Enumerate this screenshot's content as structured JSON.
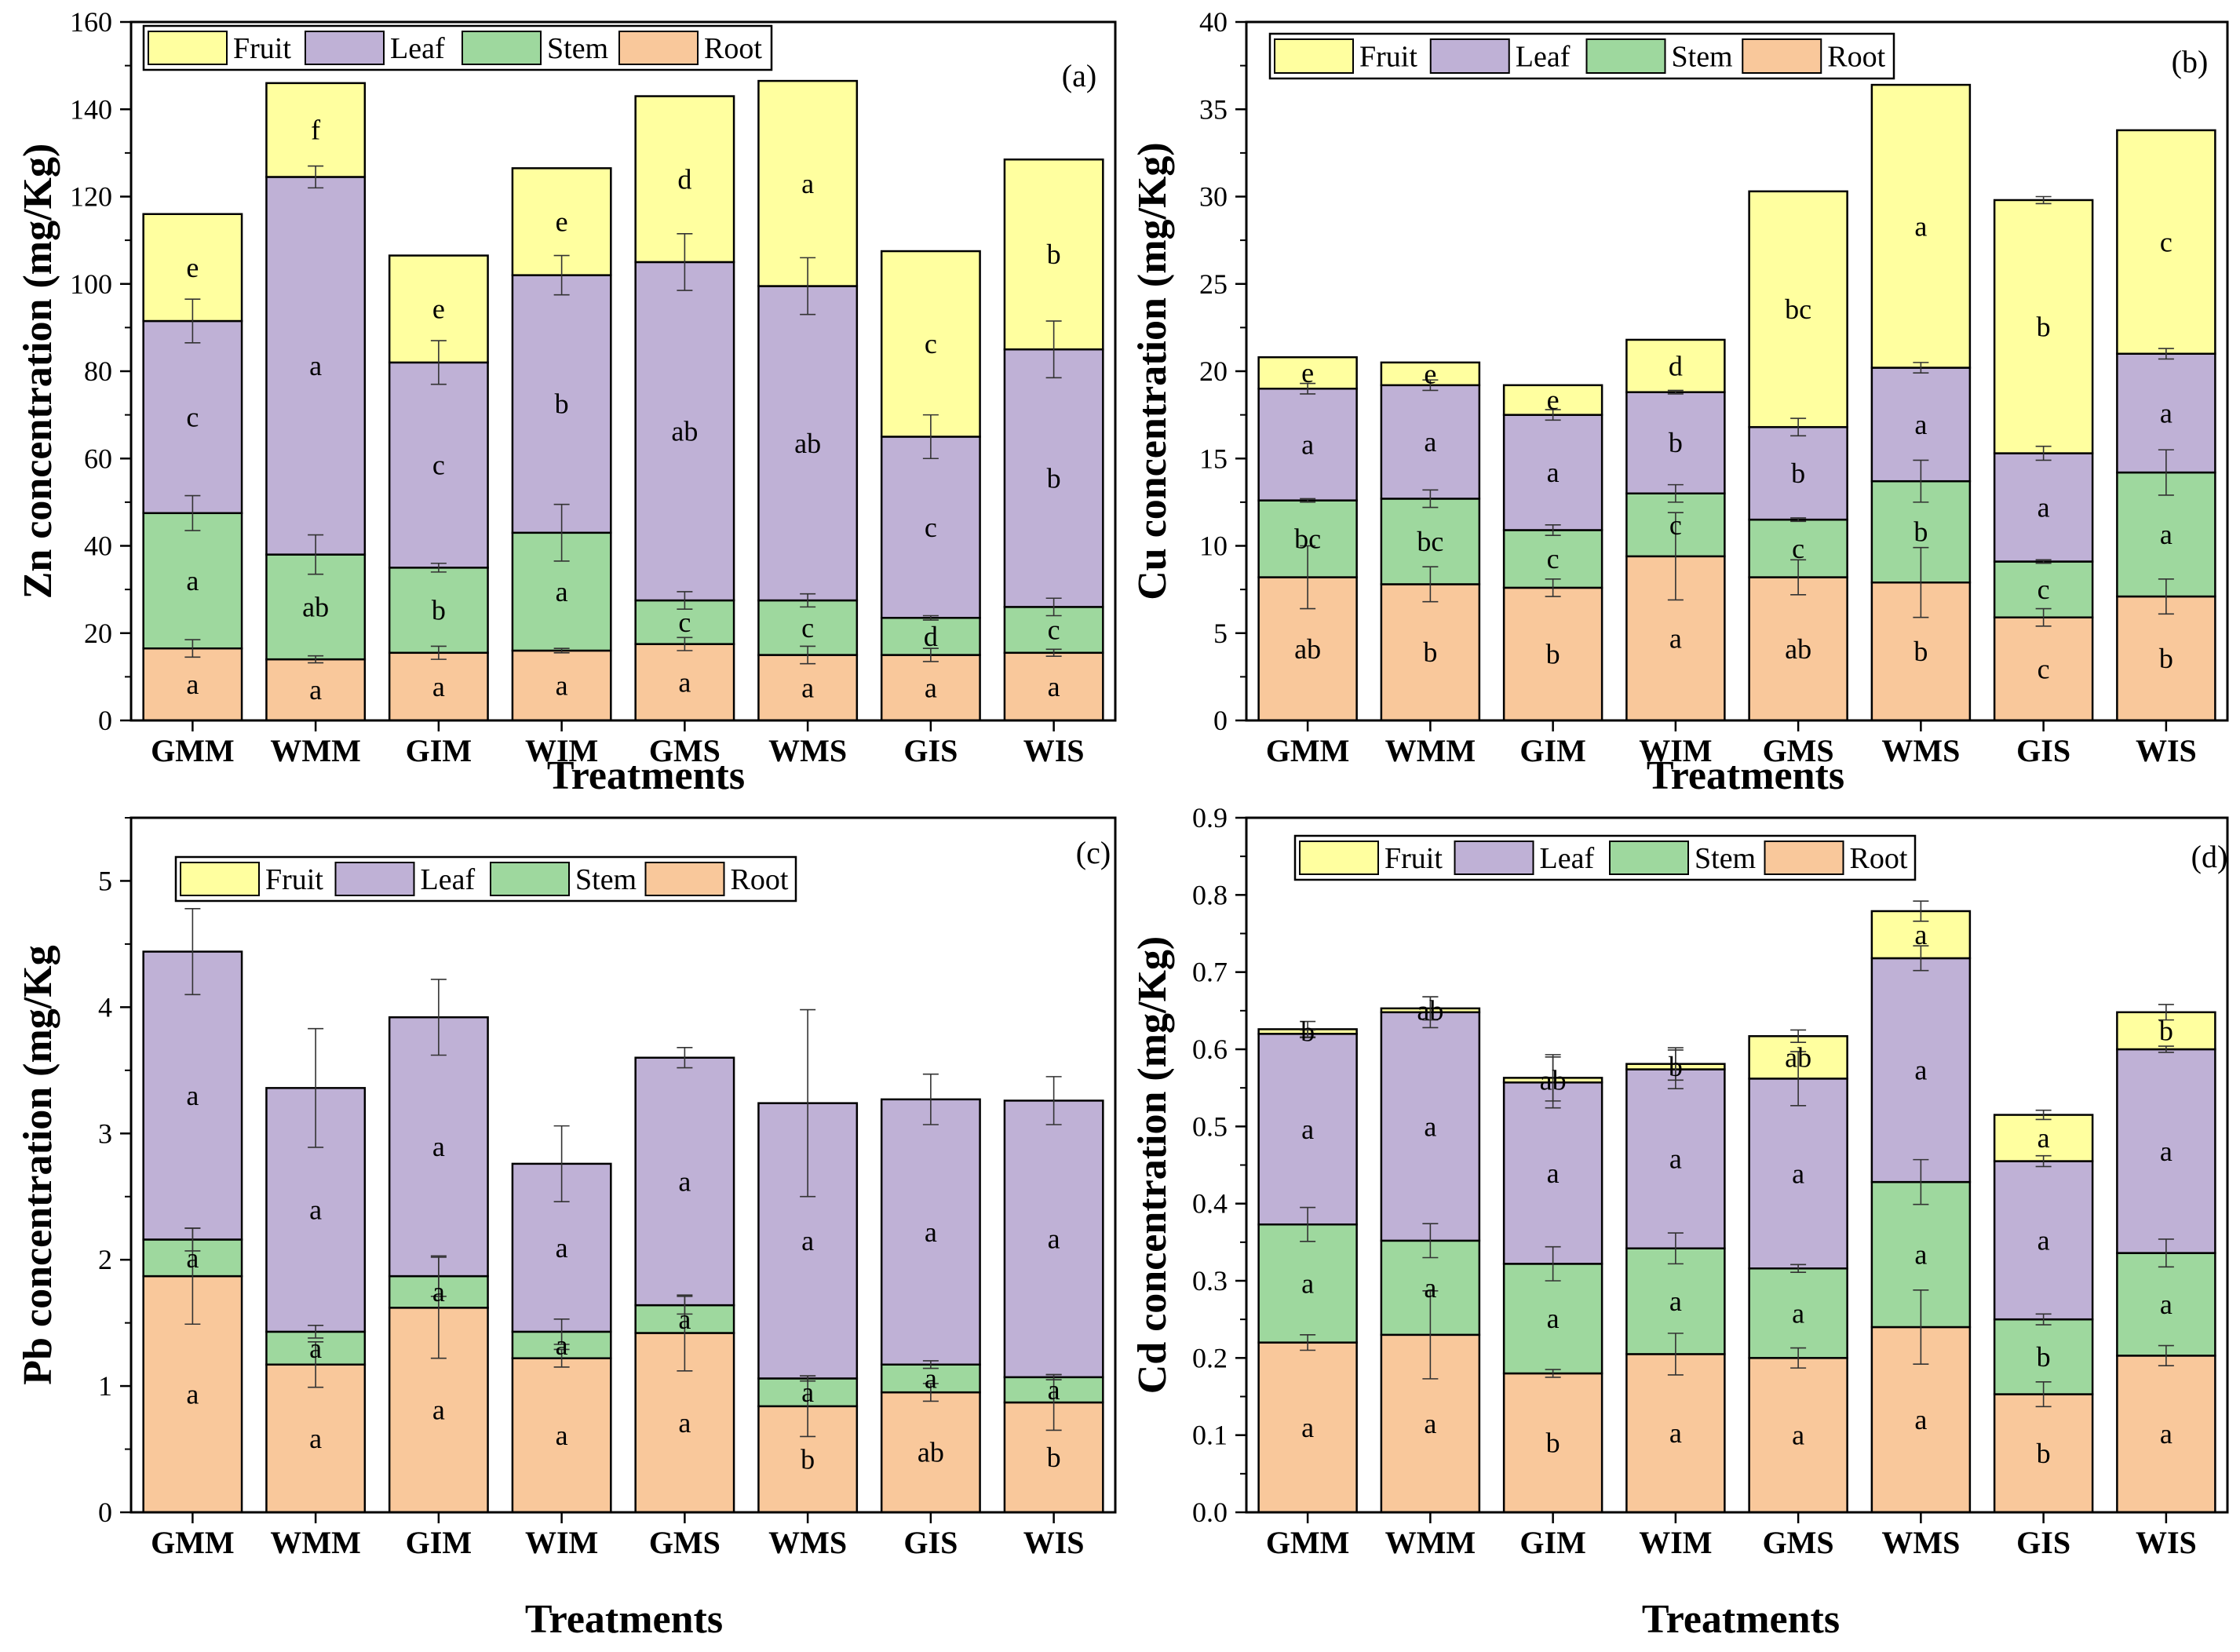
{
  "figure": {
    "series_names": [
      "Fruit",
      "Leaf",
      "Stem",
      "Root"
    ],
    "series_colors": {
      "Root": "#F9C89B",
      "Stem": "#9ED89E",
      "Leaf": "#BFB1D6",
      "Fruit": "#FFFF9F"
    },
    "xlabel": "Treatments"
  },
  "chart_data": [
    {
      "type": "bar",
      "stacked": true,
      "panel_label": "(a)",
      "ylabel": "Zn concentration (mg/Kg)",
      "xlabel": "Treatments",
      "ylim": [
        0,
        160
      ],
      "yticks": [
        0,
        20,
        40,
        60,
        80,
        100,
        120,
        140,
        160
      ],
      "ytick_labels": [
        "0",
        "20",
        "40",
        "60",
        "80",
        "100",
        "120",
        "140",
        "160"
      ],
      "legend": [
        "Fruit",
        "Leaf",
        "Stem",
        "Root"
      ],
      "categories": [
        "GMM",
        "WMM",
        "GIM",
        "WIM",
        "GMS",
        "WMS",
        "GIS",
        "WIS"
      ],
      "series": [
        {
          "name": "Root",
          "values": [
            16.5,
            14,
            15.5,
            16,
            17.5,
            15,
            15,
            15.5
          ],
          "errors": [
            2,
            0.8,
            1.5,
            0.5,
            1.5,
            2,
            1.5,
            0.8
          ],
          "letters": [
            "a",
            "a",
            "a",
            "a",
            "a",
            "a",
            "a",
            "a"
          ]
        },
        {
          "name": "Stem",
          "values": [
            31,
            24,
            19.5,
            27,
            10,
            12.5,
            8.5,
            10.5
          ],
          "errors": [
            4,
            4.5,
            1,
            6.5,
            2,
            1.5,
            0.5,
            2
          ],
          "letters": [
            "a",
            "ab",
            "b",
            "a",
            "c",
            "c",
            "d",
            "c"
          ]
        },
        {
          "name": "Leaf",
          "values": [
            44,
            86.5,
            47,
            59,
            77.5,
            72,
            41.5,
            59
          ],
          "errors": [
            5,
            2.5,
            5,
            4.5,
            6.5,
            6.5,
            5,
            6.5
          ],
          "letters": [
            "c",
            "a",
            "c",
            "b",
            "ab",
            "ab",
            "c",
            "b"
          ]
        },
        {
          "name": "Fruit",
          "values": [
            24.5,
            21.5,
            24.5,
            24.5,
            38,
            47,
            42.5,
            43.5
          ],
          "errors": [
            0,
            0,
            0,
            0,
            0,
            0,
            0,
            0
          ],
          "letters": [
            "e",
            "f",
            "e",
            "e",
            "d",
            "a",
            "c",
            "b"
          ]
        }
      ]
    },
    {
      "type": "bar",
      "stacked": true,
      "panel_label": "(b)",
      "ylabel": "Cu concentration (mg/Kg)",
      "xlabel": "Treatments",
      "ylim": [
        0,
        40
      ],
      "yticks": [
        0,
        5,
        10,
        15,
        20,
        25,
        30,
        35,
        40
      ],
      "ytick_labels": [
        "0",
        "5",
        "10",
        "15",
        "20",
        "25",
        "30",
        "35",
        "40"
      ],
      "legend": [
        "Fruit",
        "Leaf",
        "Stem",
        "Root"
      ],
      "categories": [
        "GMM",
        "WMM",
        "GIM",
        "WIM",
        "GMS",
        "WMS",
        "GIS",
        "WIS"
      ],
      "series": [
        {
          "name": "Root",
          "values": [
            8.2,
            7.8,
            7.6,
            9.4,
            8.2,
            7.9,
            5.9,
            7.1
          ],
          "errors": [
            1.8,
            1.0,
            0.5,
            2.5,
            1.0,
            2.0,
            0.5,
            1.0
          ],
          "letters": [
            "ab",
            "b",
            "b",
            "a",
            "ab",
            "b",
            "c",
            "b"
          ]
        },
        {
          "name": "Stem",
          "values": [
            4.4,
            4.9,
            3.3,
            3.6,
            3.3,
            5.8,
            3.2,
            7.1
          ],
          "errors": [
            0.1,
            0.5,
            0.3,
            0.5,
            0.1,
            1.2,
            0.1,
            1.3
          ],
          "letters": [
            "bc",
            "bc",
            "c",
            "c",
            "c",
            "b",
            "c",
            "a"
          ]
        },
        {
          "name": "Leaf",
          "values": [
            6.4,
            6.5,
            6.6,
            5.8,
            5.3,
            6.5,
            6.2,
            6.8
          ],
          "errors": [
            0.3,
            0.3,
            0.3,
            0.1,
            0.5,
            0.3,
            0.4,
            0.3
          ],
          "letters": [
            "a",
            "a",
            "a",
            "b",
            "b",
            "a",
            "a",
            "a"
          ]
        },
        {
          "name": "Fruit",
          "values": [
            1.8,
            1.3,
            1.7,
            3.0,
            13.5,
            16.2,
            14.5,
            12.8
          ],
          "errors": [
            0,
            0,
            0,
            0,
            0,
            0,
            0.2,
            0
          ],
          "letters": [
            "e",
            "e",
            "e",
            "d",
            "bc",
            "a",
            "b",
            "c"
          ]
        }
      ]
    },
    {
      "type": "bar",
      "stacked": true,
      "panel_label": "(c)",
      "ylabel": "Pb concentration (mg/Kg",
      "xlabel": "Treatments",
      "ylim": [
        0,
        5.5
      ],
      "yticks": [
        0,
        1,
        2,
        3,
        4,
        5
      ],
      "ytick_labels": [
        "0",
        "1",
        "2",
        "3",
        "4",
        "5"
      ],
      "legend": [
        "Fruit",
        "Leaf",
        "Stem",
        "Root"
      ],
      "categories": [
        "GMM",
        "WMM",
        "GIM",
        "WIM",
        "GMS",
        "WMS",
        "GIS",
        "WIS"
      ],
      "series": [
        {
          "name": "Root",
          "values": [
            1.87,
            1.17,
            1.62,
            1.22,
            1.42,
            0.84,
            0.95,
            0.87
          ],
          "errors": [
            0.38,
            0.18,
            0.4,
            0.07,
            0.3,
            0.24,
            0.07,
            0.22
          ],
          "letters": [
            "a",
            "a",
            "a",
            "a",
            "a",
            "b",
            "ab",
            "b"
          ]
        },
        {
          "name": "Stem",
          "values": [
            0.29,
            0.26,
            0.25,
            0.21,
            0.22,
            0.22,
            0.22,
            0.2
          ],
          "errors": [
            0.09,
            0.05,
            0.16,
            0.1,
            0.07,
            0.02,
            0.03,
            0.02
          ],
          "letters": [
            "a",
            "a",
            "a",
            "a",
            "a",
            "a",
            "a",
            "a"
          ]
        },
        {
          "name": "Leaf",
          "values": [
            2.28,
            1.93,
            2.05,
            1.33,
            1.96,
            2.18,
            2.1,
            2.19
          ],
          "errors": [
            0.34,
            0.47,
            0.3,
            0.3,
            0.08,
            0.74,
            0.2,
            0.19
          ],
          "letters": [
            "a",
            "a",
            "a",
            "a",
            "a",
            "a",
            "a",
            "a"
          ]
        },
        {
          "name": "Fruit",
          "values": [
            0,
            0,
            0,
            0,
            0,
            0,
            0,
            0
          ],
          "errors": [
            0,
            0,
            0,
            0,
            0,
            0,
            0,
            0
          ],
          "letters": []
        }
      ]
    },
    {
      "type": "bar",
      "stacked": true,
      "panel_label": "(d)",
      "ylabel": "Cd concentration (mg/Kg)",
      "xlabel": "Treatments",
      "ylim": [
        0,
        0.9
      ],
      "yticks": [
        0,
        0.1,
        0.2,
        0.3,
        0.4,
        0.5,
        0.6,
        0.7,
        0.8,
        0.9
      ],
      "ytick_labels": [
        "0.0",
        "0.1",
        "0.2",
        "0.3",
        "0.4",
        "0.5",
        "0.6",
        "0.7",
        "0.8",
        "0.9"
      ],
      "legend": [
        "Fruit",
        "Leaf",
        "Stem",
        "Root"
      ],
      "categories": [
        "GMM",
        "WMM",
        "GIM",
        "WIM",
        "GMS",
        "WMS",
        "GIS",
        "WIS"
      ],
      "series": [
        {
          "name": "Root",
          "values": [
            0.22,
            0.23,
            0.18,
            0.205,
            0.2,
            0.24,
            0.153,
            0.203
          ],
          "errors": [
            0.01,
            0.057,
            0.005,
            0.027,
            0.013,
            0.048,
            0.016,
            0.013
          ],
          "letters": [
            "a",
            "a",
            "b",
            "a",
            "a",
            "a",
            "b",
            "a"
          ]
        },
        {
          "name": "Stem",
          "values": [
            0.153,
            0.122,
            0.142,
            0.137,
            0.116,
            0.188,
            0.097,
            0.133
          ],
          "errors": [
            0.022,
            0.022,
            0.022,
            0.02,
            0.005,
            0.029,
            0.007,
            0.018
          ],
          "letters": [
            "a",
            "a",
            "a",
            "a",
            "a",
            "a",
            "b",
            "a"
          ]
        },
        {
          "name": "Leaf",
          "values": [
            0.247,
            0.296,
            0.235,
            0.232,
            0.246,
            0.29,
            0.205,
            0.264
          ],
          "errors": [
            0.005,
            0.02,
            0.033,
            0.025,
            0.035,
            0.016,
            0.007,
            0.004
          ],
          "letters": [
            "a",
            "a",
            "a",
            "a",
            "a",
            "a",
            "a",
            "a"
          ]
        },
        {
          "name": "Fruit",
          "values": [
            0.006,
            0.005,
            0.006,
            0.007,
            0.055,
            0.061,
            0.06,
            0.048
          ],
          "errors": [
            0.01,
            0.015,
            0.03,
            0.021,
            0.008,
            0.013,
            0.006,
            0.01
          ],
          "letters": [
            "b",
            "ab",
            "ab",
            "b",
            "ab",
            "a",
            "a",
            "b"
          ]
        }
      ]
    }
  ]
}
